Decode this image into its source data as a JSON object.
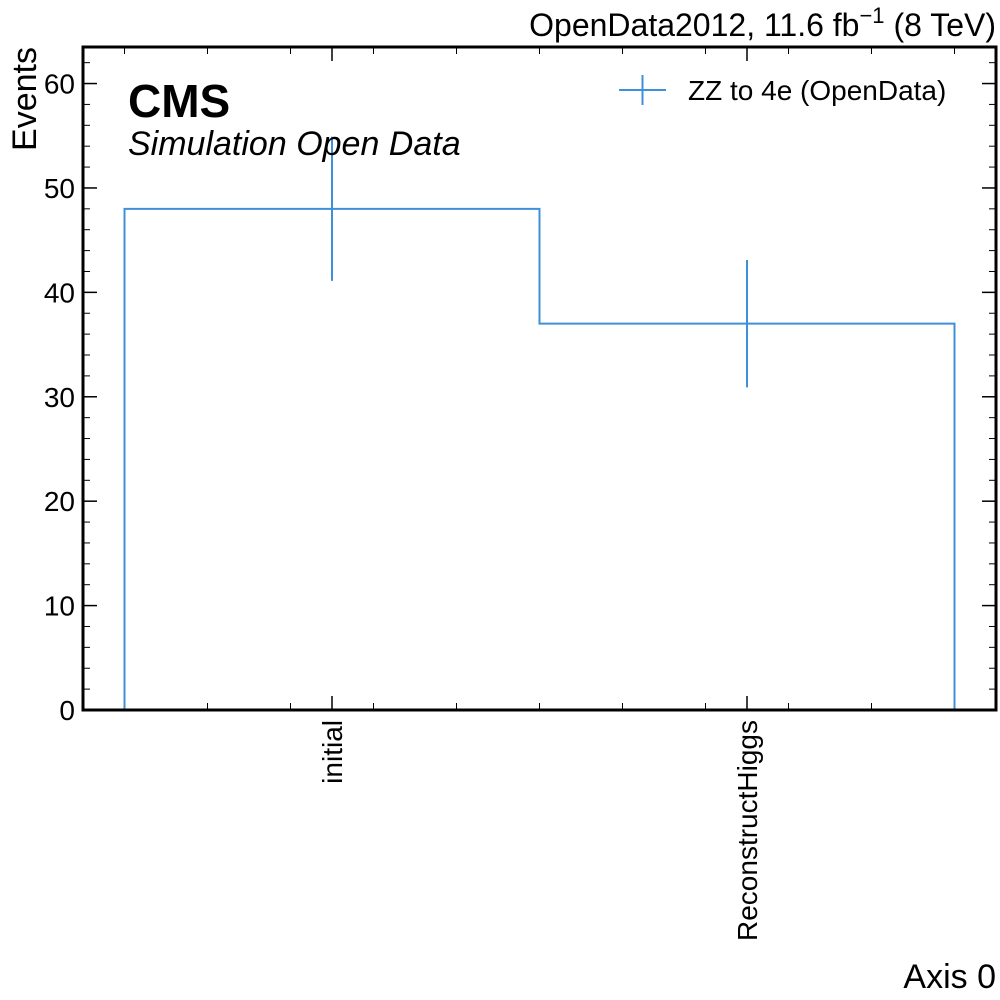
{
  "chart_data": {
    "type": "bar",
    "style": "step-histogram-with-error-bars",
    "categories": [
      "initial",
      "ReconstructHiggs"
    ],
    "series": [
      {
        "name": "ZZ to 4e (OpenData)",
        "values": [
          48,
          37
        ],
        "errors": [
          6.9,
          6.1
        ],
        "color": "#3f90da"
      }
    ],
    "xlabel": "Axis 0",
    "ylabel": "Events",
    "ylim": [
      0,
      63.5
    ],
    "yticks": [
      0,
      10,
      20,
      30,
      40,
      50,
      60
    ],
    "experiment_label": "CMS",
    "experiment_sublabel": "Simulation Open Data",
    "lumi_label": {
      "prefix": "OpenData2012, 11.6 fb",
      "superscript": "−1",
      "suffix": " (8 TeV)"
    },
    "legend_position": "top-right",
    "grid": false
  }
}
